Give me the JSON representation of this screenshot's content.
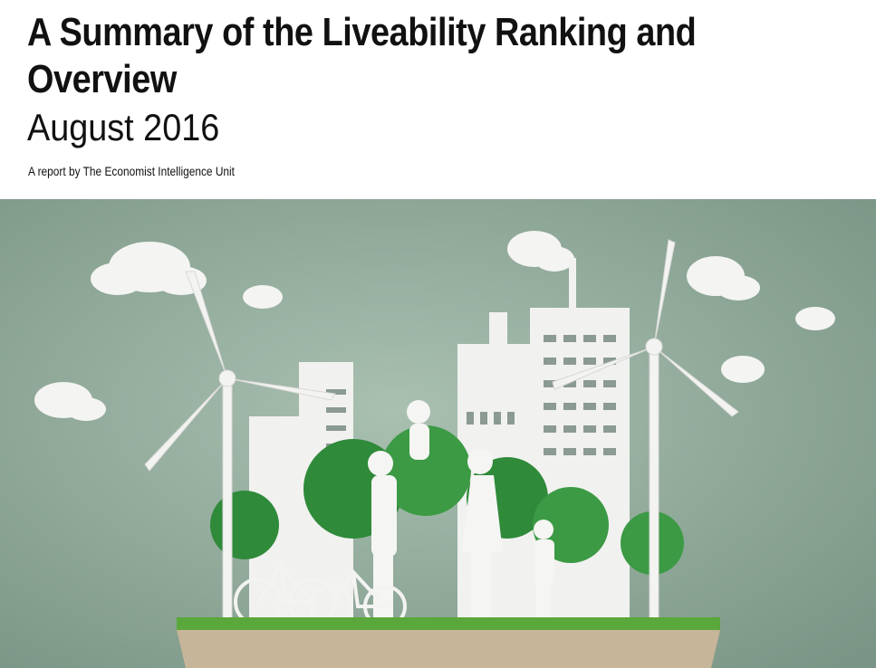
{
  "header": {
    "title_lines": [
      "A Summary of the Liveability Ranking and",
      "Overview"
    ],
    "date": "August 2016",
    "byline": "A report by The Economist Intelligence Unit"
  }
}
